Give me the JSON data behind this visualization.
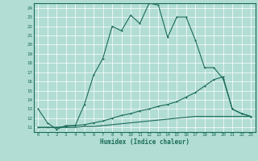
{
  "xlabel": "Humidex (Indice chaleur)",
  "bg_color": "#b2ddd4",
  "line_color": "#1a6b5a",
  "grid_color": "#ffffff",
  "xlim": [
    -0.5,
    23.5
  ],
  "ylim": [
    10.5,
    24.5
  ],
  "xticks": [
    0,
    1,
    2,
    3,
    4,
    5,
    6,
    7,
    8,
    9,
    10,
    11,
    12,
    13,
    14,
    15,
    16,
    17,
    18,
    19,
    20,
    21,
    22,
    23
  ],
  "yticks": [
    11,
    12,
    13,
    14,
    15,
    16,
    17,
    18,
    19,
    20,
    21,
    22,
    23,
    24
  ],
  "series1_x": [
    0,
    1,
    2,
    3,
    4,
    5,
    6,
    7,
    8,
    9,
    10,
    11,
    12,
    13,
    14,
    15,
    16,
    17,
    18,
    19,
    20,
    21,
    22,
    23
  ],
  "series1_y": [
    13.0,
    11.5,
    10.8,
    11.2,
    11.2,
    13.5,
    16.7,
    18.5,
    22.0,
    21.5,
    23.2,
    22.3,
    24.5,
    24.3,
    20.8,
    23.0,
    23.0,
    20.5,
    17.5,
    17.5,
    16.3,
    13.0,
    12.5,
    12.2
  ],
  "series2_x": [
    0,
    1,
    2,
    3,
    4,
    5,
    6,
    7,
    8,
    9,
    10,
    11,
    12,
    13,
    14,
    15,
    16,
    17,
    18,
    19,
    20,
    21,
    22,
    23
  ],
  "series2_y": [
    11.0,
    11.0,
    11.0,
    11.1,
    11.2,
    11.3,
    11.5,
    11.7,
    12.0,
    12.3,
    12.5,
    12.8,
    13.0,
    13.3,
    13.5,
    13.8,
    14.3,
    14.8,
    15.5,
    16.2,
    16.5,
    13.0,
    12.5,
    12.2
  ],
  "series3_x": [
    0,
    1,
    2,
    3,
    4,
    5,
    6,
    7,
    8,
    9,
    10,
    11,
    12,
    13,
    14,
    15,
    16,
    17,
    18,
    19,
    20,
    21,
    22,
    23
  ],
  "series3_y": [
    11.0,
    11.0,
    11.0,
    11.0,
    11.0,
    11.1,
    11.1,
    11.2,
    11.3,
    11.4,
    11.5,
    11.6,
    11.7,
    11.8,
    11.9,
    12.0,
    12.1,
    12.2,
    12.2,
    12.2,
    12.2,
    12.2,
    12.2,
    12.2
  ]
}
